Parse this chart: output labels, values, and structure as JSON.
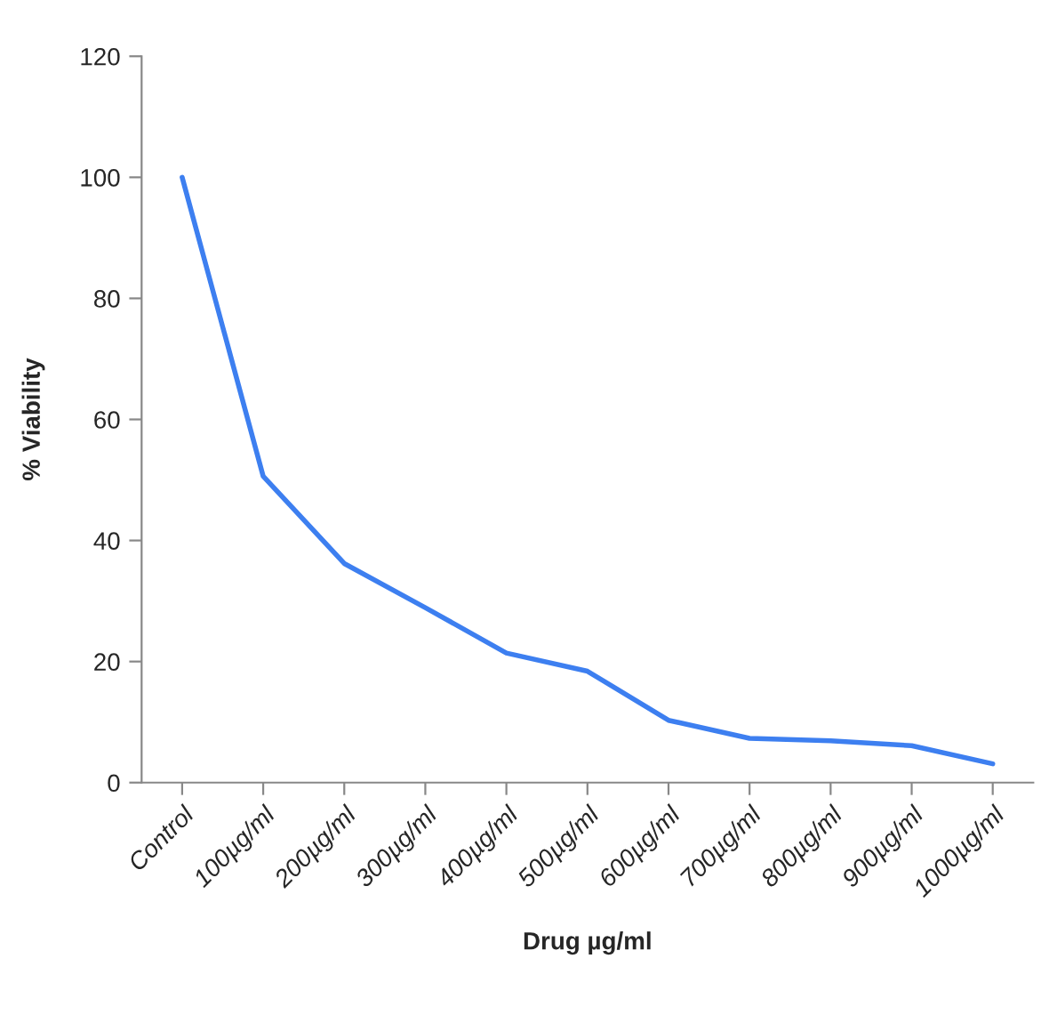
{
  "chart_data": {
    "type": "line",
    "xlabel": "Drug µg/ml",
    "ylabel": "% Viability",
    "categories": [
      "Control",
      "100µg/ml",
      "200µg/ml",
      "300µg/ml",
      "400µg/ml",
      "500µg/ml",
      "600µg/ml",
      "700µg/ml",
      "800µg/ml",
      "900µg/ml",
      "1000µg/ml"
    ],
    "series": [
      {
        "color": "#3d7ff0",
        "values": [
          100,
          50.6,
          36.2,
          28.9,
          21.4,
          18.4,
          10.3,
          7.3,
          6.9,
          6.1,
          3.1
        ]
      }
    ],
    "ylim": [
      0,
      120
    ],
    "yticks": [
      0,
      20,
      40,
      60,
      80,
      100,
      120
    ],
    "grid": false,
    "marker": "none",
    "line_style": "solid"
  }
}
